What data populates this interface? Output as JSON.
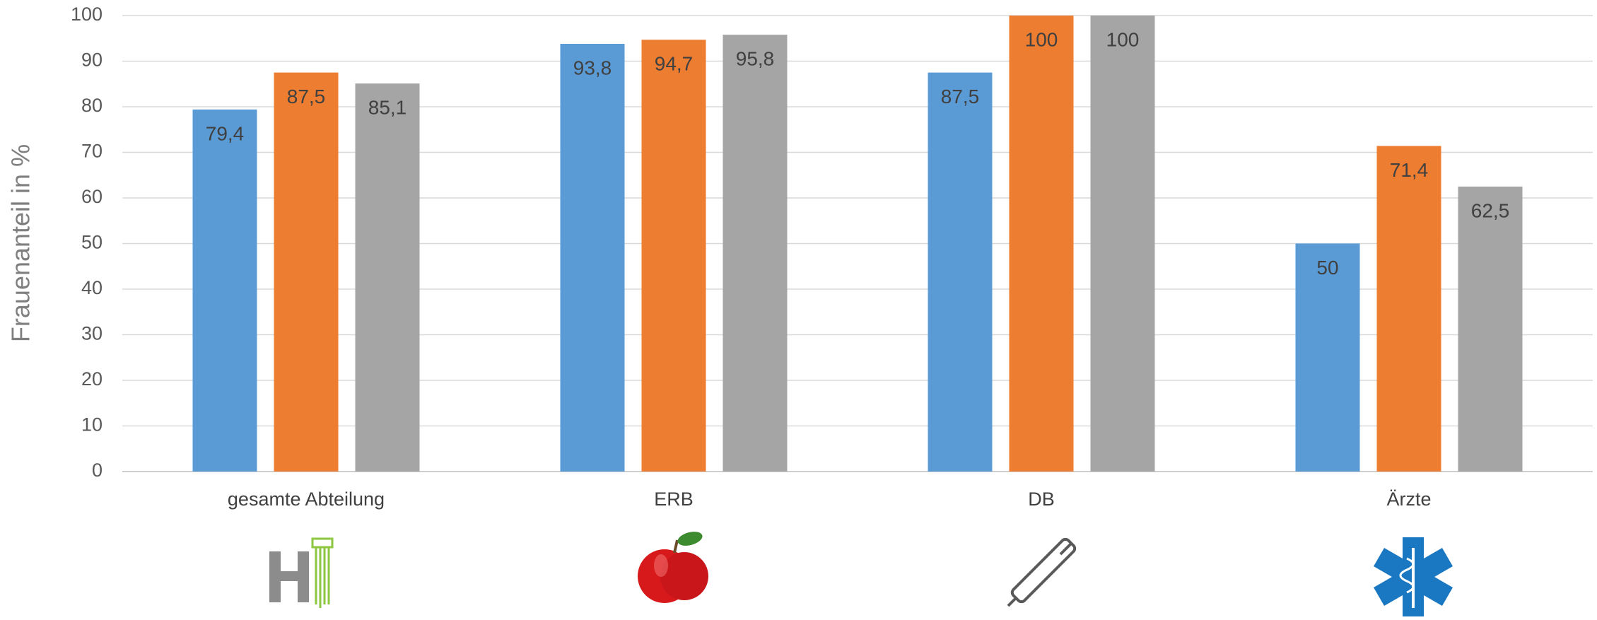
{
  "chart_data": {
    "type": "bar",
    "y_label": "Frauenanteil in %",
    "categories": [
      "gesamte Abteilung",
      "ERB",
      "DB",
      "Ärzte"
    ],
    "series": [
      {
        "color": "#5b9bd5",
        "values": [
          79.4,
          93.8,
          87.5,
          50
        ],
        "value_labels": [
          "79,4",
          "93,8",
          "87,5",
          "50"
        ]
      },
      {
        "color": "#ed7d31",
        "values": [
          87.5,
          94.7,
          100,
          71.4
        ],
        "value_labels": [
          "87,5",
          "94,7",
          "100",
          "71,4"
        ]
      },
      {
        "color": "#a5a5a5",
        "values": [
          85.1,
          95.8,
          100,
          62.5
        ],
        "value_labels": [
          "85,1",
          "95,8",
          "100",
          "62,5"
        ]
      }
    ],
    "ylim": [
      0,
      100
    ],
    "yticks": [
      0,
      10,
      20,
      30,
      40,
      50,
      60,
      70,
      80,
      90,
      100
    ],
    "grid": true
  }
}
